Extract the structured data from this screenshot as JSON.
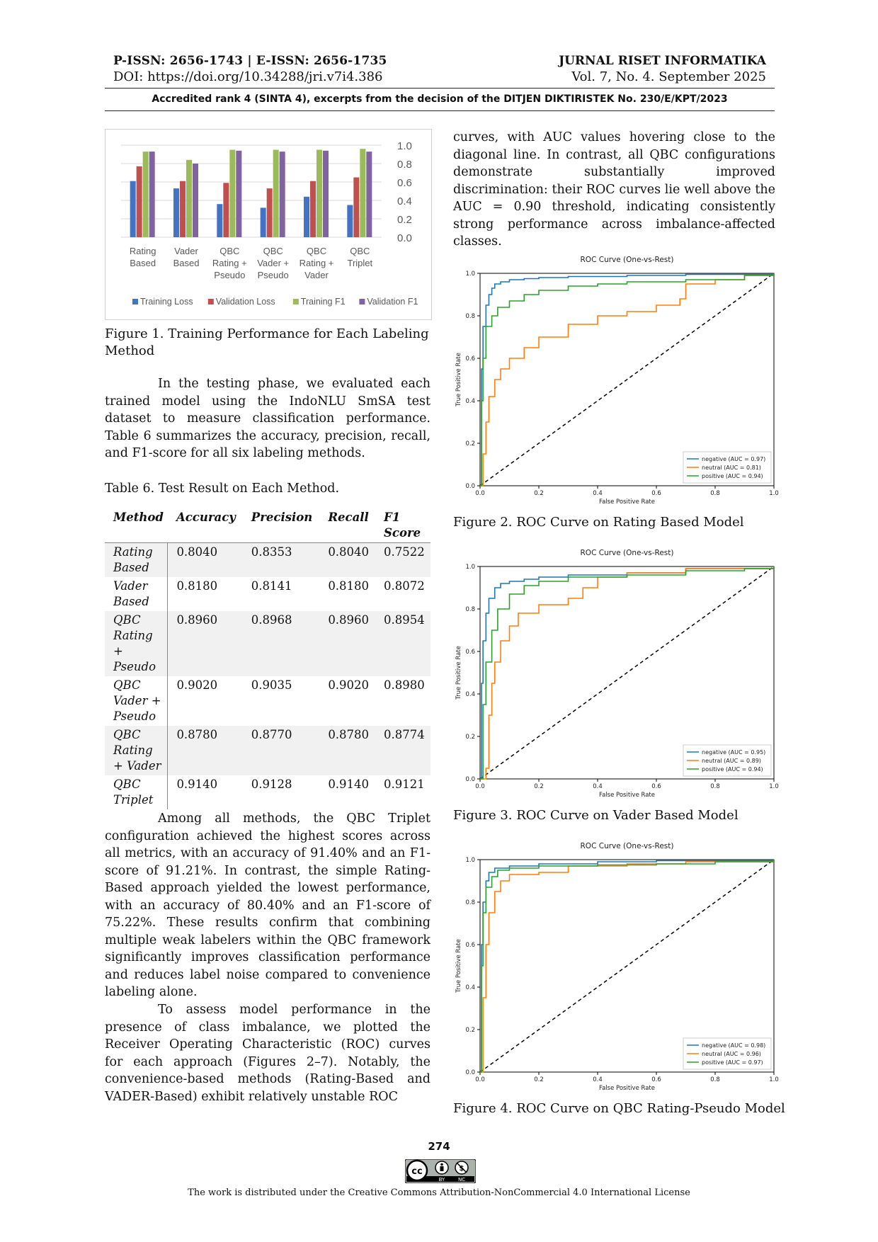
{
  "header": {
    "issn": "P-ISSN: 2656-1743 | E-ISSN: 2656-1735",
    "doi": "DOI: https://doi.org/10.34288/jri.v7i4.386",
    "journal": "JURNAL RISET INFORMATIKA",
    "volume": "Vol. 7, No. 4. September 2025",
    "accreditation": "Accredited rank 4 (SINTA 4), excerpts from the decision of the DITJEN DIKTIRISTEK No. 230/E/KPT/2023"
  },
  "figure1": {
    "caption": "Figure 1. Training Performance for Each Labeling Method",
    "chart_data": {
      "type": "bar",
      "categories": [
        [
          "Rating",
          "Based"
        ],
        [
          "Vader",
          "Based"
        ],
        [
          "QBC",
          "Rating +",
          "Pseudo"
        ],
        [
          "QBC",
          "Vader +",
          "Pseudo"
        ],
        [
          "QBC",
          "Rating +",
          "Vader"
        ],
        [
          "QBC",
          "Triplet"
        ]
      ],
      "series": [
        {
          "name": "Training Loss",
          "color": "#4472c4",
          "values": [
            0.61,
            0.53,
            0.36,
            0.32,
            0.44,
            0.35
          ]
        },
        {
          "name": "Validation Loss",
          "color": "#c0504d",
          "values": [
            0.77,
            0.61,
            0.59,
            0.53,
            0.61,
            0.65
          ]
        },
        {
          "name": "Training F1",
          "color": "#9bbb59",
          "values": [
            0.93,
            0.84,
            0.95,
            0.95,
            0.95,
            0.96
          ]
        },
        {
          "name": "Validation F1",
          "color": "#8064a2",
          "values": [
            0.93,
            0.8,
            0.94,
            0.93,
            0.94,
            0.93
          ]
        }
      ],
      "ylim": [
        0,
        1.0
      ],
      "yticks": [
        "0.0",
        "0.2",
        "0.4",
        "0.6",
        "0.8",
        "1.0"
      ],
      "yaxis_side": "right",
      "grid": true,
      "legend": "bottom"
    }
  },
  "para1": "In the testing phase, we evaluated each trained model using the IndoNLU SmSA test dataset to measure classification performance. Table 6 summarizes the accuracy, precision, recall, and F1-score for all six labeling methods.",
  "table6": {
    "title": "Table 6. Test Result on Each Method.",
    "headers": [
      "Method",
      "Accuracy",
      "Precision",
      "Recall",
      "F1 Score"
    ],
    "rows": [
      {
        "method": "Rating Based",
        "accuracy": "0.8040",
        "precision": "0.8353",
        "recall": "0.8040",
        "f1": "0.7522"
      },
      {
        "method": "Vader Based",
        "accuracy": "0.8180",
        "precision": "0.8141",
        "recall": "0.8180",
        "f1": "0.8072"
      },
      {
        "method": "QBC Rating + Pseudo",
        "accuracy": "0.8960",
        "precision": "0.8968",
        "recall": "0.8960",
        "f1": "0.8954"
      },
      {
        "method": "QBC Vader + Pseudo",
        "accuracy": "0.9020",
        "precision": "0.9035",
        "recall": "0.9020",
        "f1": "0.8980"
      },
      {
        "method": "QBC Rating + Vader",
        "accuracy": "0.8780",
        "precision": "0.8770",
        "recall": "0.8780",
        "f1": "0.8774"
      },
      {
        "method": "QBC Triplet",
        "accuracy": "0.9140",
        "precision": "0.9128",
        "recall": "0.9140",
        "f1": "0.9121"
      }
    ]
  },
  "para2": "Among all methods, the QBC Triplet configuration achieved the highest scores across all metrics, with an accuracy of 91.40% and an F1-score of 91.21%. In contrast, the simple Rating-Based approach yielded the lowest performance, with an accuracy of 80.40% and an F1-score of 75.22%. These results confirm that combining multiple weak labelers within the QBC framework significantly improves classification performance and reduces label noise compared to convenience labeling alone.",
  "para3": "To assess model performance in the presence of class imbalance, we plotted the Receiver Operating Characteristic (ROC) curves for each approach (Figures 2–7). Notably, the convenience-based methods (Rating-Based and VADER-Based) exhibit relatively unstable ROC",
  "para4": "curves, with AUC values hovering close to the diagonal line. In contrast, all QBC configurations demonstrate substantially improved discrimination: their ROC curves lie well above the AUC = 0.90 threshold, indicating consistently strong performance across imbalance-affected classes.",
  "roc_common": {
    "title": "ROC Curve (One-vs-Rest)",
    "xlabel": "False Positive Rate",
    "ylabel": "True Positive Rate",
    "ticks": [
      "0.0",
      "0.2",
      "0.4",
      "0.6",
      "0.8",
      "1.0"
    ],
    "colors": {
      "negative": "#1f77b4",
      "neutral": "#ff7f0e",
      "positive": "#2ca02c",
      "diagonal": "#000000"
    }
  },
  "roc_figures": [
    {
      "caption": "Figure 2. ROC Curve on Rating Based Model",
      "chart_data": {
        "type": "line",
        "legend": "bottom-right",
        "series": [
          {
            "name": "negative (AUC = 0.97)",
            "x": [
              0,
              0.005,
              0.01,
              0.02,
              0.03,
              0.04,
              0.05,
              0.07,
              0.1,
              0.15,
              0.2,
              0.3,
              0.5,
              0.7,
              1.0
            ],
            "y": [
              0,
              0.55,
              0.75,
              0.85,
              0.9,
              0.93,
              0.95,
              0.96,
              0.97,
              0.975,
              0.98,
              0.985,
              0.99,
              0.995,
              1.0
            ]
          },
          {
            "name": "neutral (AUC = 0.81)",
            "x": [
              0,
              0.01,
              0.02,
              0.03,
              0.05,
              0.07,
              0.1,
              0.15,
              0.2,
              0.3,
              0.4,
              0.5,
              0.6,
              0.68,
              0.7,
              0.8,
              0.9,
              1.0
            ],
            "y": [
              0,
              0.15,
              0.3,
              0.42,
              0.5,
              0.55,
              0.6,
              0.65,
              0.7,
              0.76,
              0.8,
              0.82,
              0.85,
              0.88,
              0.95,
              0.97,
              0.99,
              1.0
            ]
          },
          {
            "name": "positive (AUC = 0.94)",
            "x": [
              0,
              0.005,
              0.01,
              0.02,
              0.04,
              0.06,
              0.1,
              0.15,
              0.2,
              0.3,
              0.4,
              0.5,
              0.7,
              0.9,
              1.0
            ],
            "y": [
              0,
              0.4,
              0.6,
              0.75,
              0.8,
              0.84,
              0.87,
              0.9,
              0.92,
              0.94,
              0.95,
              0.96,
              0.97,
              0.99,
              1.0
            ]
          }
        ]
      }
    },
    {
      "caption": "Figure 3. ROC Curve on Vader Based Model",
      "chart_data": {
        "type": "line",
        "legend": "bottom-right",
        "series": [
          {
            "name": "negative (AUC = 0.95)",
            "x": [
              0,
              0.005,
              0.01,
              0.02,
              0.03,
              0.05,
              0.07,
              0.1,
              0.15,
              0.2,
              0.3,
              0.5,
              0.7,
              1.0
            ],
            "y": [
              0,
              0.45,
              0.65,
              0.78,
              0.85,
              0.9,
              0.92,
              0.93,
              0.94,
              0.95,
              0.96,
              0.97,
              0.99,
              1.0
            ]
          },
          {
            "name": "neutral (AUC = 0.89)",
            "x": [
              0,
              0.02,
              0.03,
              0.04,
              0.05,
              0.07,
              0.1,
              0.13,
              0.2,
              0.3,
              0.35,
              0.4,
              0.5,
              0.7,
              1.0
            ],
            "y": [
              0,
              0.05,
              0.3,
              0.45,
              0.55,
              0.65,
              0.72,
              0.78,
              0.82,
              0.85,
              0.9,
              0.95,
              0.97,
              0.99,
              1.0
            ]
          },
          {
            "name": "positive (AUC = 0.94)",
            "x": [
              0,
              0.01,
              0.02,
              0.04,
              0.06,
              0.1,
              0.15,
              0.2,
              0.3,
              0.5,
              0.7,
              0.9,
              1.0
            ],
            "y": [
              0,
              0.35,
              0.55,
              0.7,
              0.8,
              0.87,
              0.91,
              0.93,
              0.95,
              0.96,
              0.98,
              0.99,
              1.0
            ]
          }
        ]
      }
    },
    {
      "caption": "Figure 4. ROC Curve on QBC Rating-Pseudo Model",
      "chart_data": {
        "type": "line",
        "legend": "bottom-right",
        "series": [
          {
            "name": "negative (AUC = 0.98)",
            "x": [
              0,
              0.005,
              0.01,
              0.02,
              0.03,
              0.05,
              0.1,
              0.2,
              0.4,
              0.6,
              1.0
            ],
            "y": [
              0,
              0.6,
              0.8,
              0.9,
              0.94,
              0.96,
              0.97,
              0.98,
              0.99,
              0.995,
              1.0
            ]
          },
          {
            "name": "neutral (AUC = 0.96)",
            "x": [
              0,
              0.01,
              0.02,
              0.03,
              0.05,
              0.07,
              0.1,
              0.2,
              0.3,
              0.5,
              0.7,
              1.0
            ],
            "y": [
              0,
              0.35,
              0.6,
              0.75,
              0.85,
              0.9,
              0.93,
              0.94,
              0.97,
              0.98,
              0.99,
              1.0
            ]
          },
          {
            "name": "positive (AUC = 0.97)",
            "x": [
              0,
              0.005,
              0.01,
              0.02,
              0.04,
              0.06,
              0.1,
              0.2,
              0.4,
              0.6,
              0.8,
              1.0
            ],
            "y": [
              0,
              0.5,
              0.75,
              0.87,
              0.92,
              0.95,
              0.96,
              0.97,
              0.975,
              0.98,
              0.99,
              1.0
            ]
          }
        ]
      }
    }
  ],
  "footer": {
    "page": "274",
    "license": "The work is distributed under the Creative Commons Attribution-NonCommercial 4.0 International License",
    "badge_top": "cc",
    "badge_by": "BY",
    "badge_nc": "NC"
  }
}
